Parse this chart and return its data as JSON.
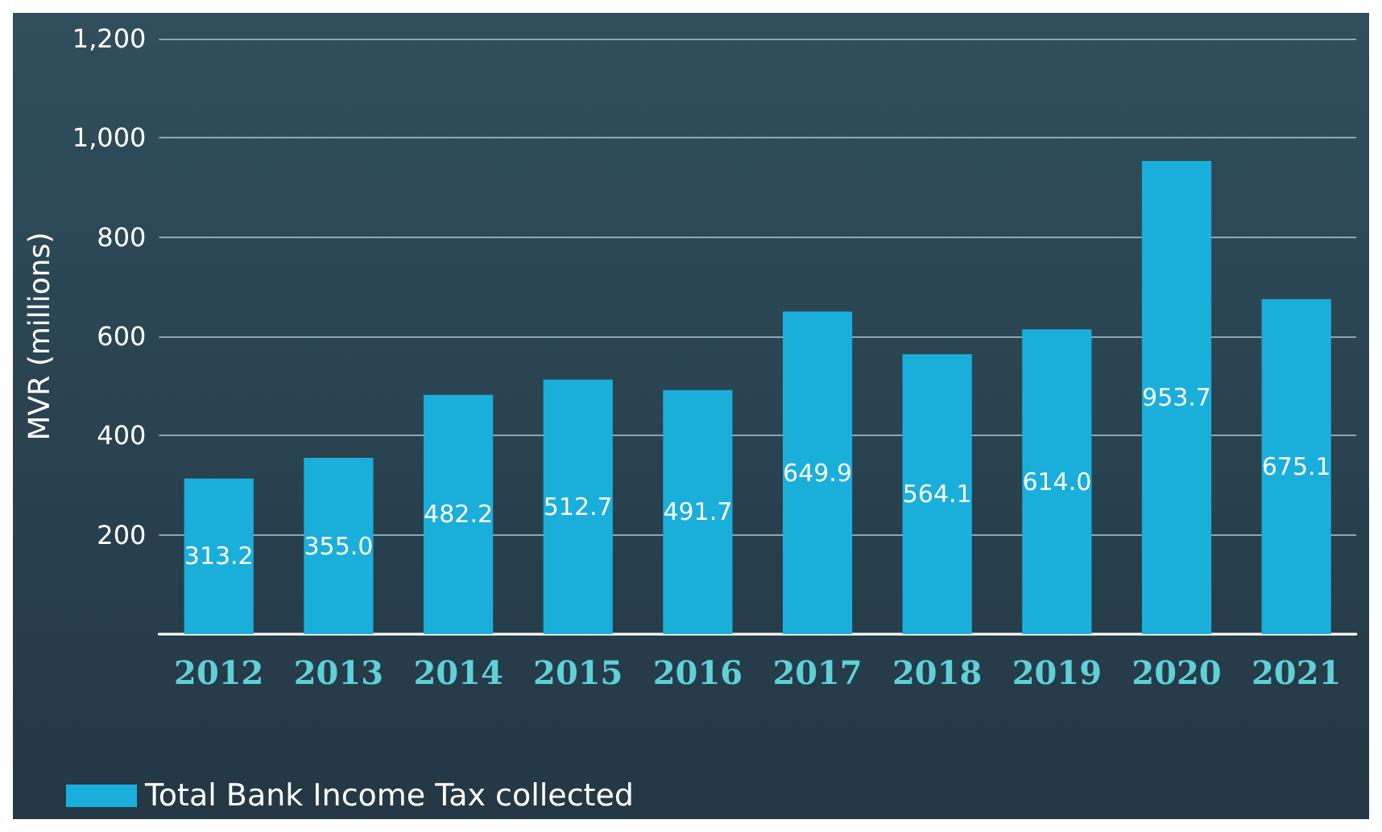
{
  "chart_data": {
    "type": "bar",
    "ylabel": "MVR (millions)",
    "categories": [
      "2012",
      "2013",
      "2014",
      "2015",
      "2016",
      "2017",
      "2018",
      "2019",
      "2020",
      "2021"
    ],
    "series": [
      {
        "name": "Total Bank Income Tax collected",
        "color": "#1aaedb",
        "values": [
          313.2,
          355.0,
          482.2,
          512.7,
          491.7,
          649.9,
          564.1,
          614.0,
          953.7,
          675.1
        ],
        "value_labels": [
          "313.2",
          "355.0",
          "482.2",
          "512.7",
          "491.7",
          "649.9",
          "564.1",
          "614.0",
          "953.7",
          "675.1"
        ]
      }
    ],
    "ylim": [
      0,
      1200
    ],
    "yticks": [
      {
        "value": 0,
        "label": null
      },
      200,
      400,
      600,
      800,
      {
        "value": 1000,
        "label": "1,000"
      },
      {
        "value": 1200,
        "label": "1,200"
      }
    ],
    "grid": "y",
    "legend": "bottom left"
  }
}
